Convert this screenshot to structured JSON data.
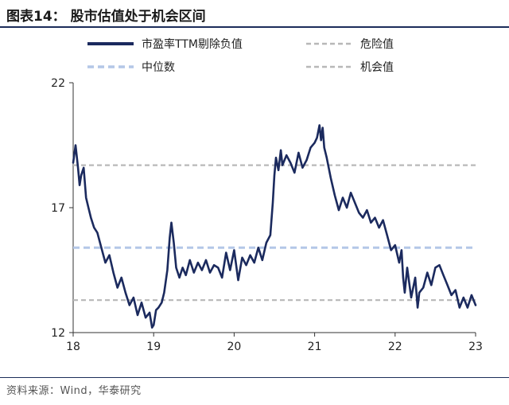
{
  "header": {
    "title": "图表14：  股市估值处于机会区间"
  },
  "footer": {
    "source": "资料来源：Wind，华泰研究"
  },
  "chart_data": {
    "type": "line",
    "title": "股市估值处于机会区间",
    "xlabel": "",
    "ylabel": "",
    "xlim": [
      18,
      23
    ],
    "ylim": [
      12,
      22
    ],
    "x_ticks": [
      "18",
      "19",
      "20",
      "21",
      "22",
      "23"
    ],
    "y_ticks": [
      "12",
      "17",
      "22"
    ],
    "legend_position": "top",
    "series": [
      {
        "name": "市盈率TTM剔除负值",
        "style": "solid",
        "color": "#1b2a5e",
        "x": [
          18.0,
          18.03,
          18.06,
          18.08,
          18.1,
          18.13,
          18.16,
          18.19,
          18.22,
          18.26,
          18.3,
          18.35,
          18.4,
          18.45,
          18.5,
          18.55,
          18.6,
          18.65,
          18.7,
          18.75,
          18.8,
          18.85,
          18.9,
          18.95,
          18.98,
          19.0,
          19.03,
          19.06,
          19.1,
          19.13,
          19.17,
          19.2,
          19.22,
          19.25,
          19.28,
          19.32,
          19.36,
          19.4,
          19.45,
          19.5,
          19.55,
          19.6,
          19.65,
          19.7,
          19.75,
          19.8,
          19.85,
          19.9,
          19.95,
          20.0,
          20.05,
          20.1,
          20.15,
          20.2,
          20.25,
          20.3,
          20.35,
          20.4,
          20.45,
          20.48,
          20.5,
          20.52,
          20.55,
          20.58,
          20.6,
          20.65,
          20.7,
          20.75,
          20.8,
          20.85,
          20.9,
          20.95,
          21.0,
          21.03,
          21.06,
          21.08,
          21.1,
          21.12,
          21.15,
          21.2,
          21.25,
          21.3,
          21.35,
          21.4,
          21.45,
          21.5,
          21.55,
          21.6,
          21.65,
          21.7,
          21.75,
          21.8,
          21.85,
          21.9,
          21.95,
          22.0,
          22.05,
          22.08,
          22.1,
          22.12,
          22.15,
          22.2,
          22.25,
          22.28,
          22.3,
          22.35,
          22.4,
          22.45,
          22.5,
          22.55,
          22.6,
          22.65,
          22.7,
          22.75,
          22.8,
          22.85,
          22.9,
          22.95,
          23.0
        ],
        "values": [
          18.8,
          19.5,
          18.6,
          17.9,
          18.3,
          18.6,
          17.4,
          17.0,
          16.6,
          16.2,
          16.0,
          15.4,
          14.8,
          15.1,
          14.4,
          13.8,
          14.2,
          13.6,
          13.1,
          13.4,
          12.7,
          13.2,
          12.6,
          12.8,
          12.2,
          12.3,
          12.9,
          13.0,
          13.2,
          13.6,
          14.5,
          15.8,
          16.4,
          15.6,
          14.6,
          14.2,
          14.6,
          14.3,
          14.9,
          14.4,
          14.8,
          14.5,
          14.9,
          14.4,
          14.7,
          14.6,
          14.2,
          15.2,
          14.5,
          15.3,
          14.1,
          15.0,
          14.7,
          15.1,
          14.8,
          15.4,
          14.9,
          15.6,
          15.9,
          17.2,
          18.3,
          19.0,
          18.5,
          19.3,
          18.7,
          19.1,
          18.8,
          18.4,
          19.2,
          18.6,
          18.9,
          19.4,
          19.6,
          19.8,
          20.3,
          19.7,
          20.2,
          19.4,
          19.0,
          18.2,
          17.5,
          16.9,
          17.4,
          17.0,
          17.6,
          17.2,
          16.8,
          16.6,
          16.9,
          16.4,
          16.6,
          16.2,
          16.5,
          15.9,
          15.3,
          15.5,
          14.8,
          15.3,
          14.2,
          13.6,
          14.6,
          13.4,
          14.2,
          13.0,
          13.6,
          13.8,
          14.4,
          13.9,
          14.6,
          14.7,
          14.3,
          13.9,
          13.5,
          13.7,
          13.0,
          13.4,
          13.0,
          13.5,
          13.1
        ]
      },
      {
        "name": "危险值",
        "style": "dashed",
        "color": "#b8b8b8",
        "y": 18.7
      },
      {
        "name": "中位数",
        "style": "dashed",
        "color": "#b4c7e7",
        "y": 15.4
      },
      {
        "name": "机会值",
        "style": "dashed",
        "color": "#b8b8b8",
        "y": 13.3
      }
    ]
  }
}
